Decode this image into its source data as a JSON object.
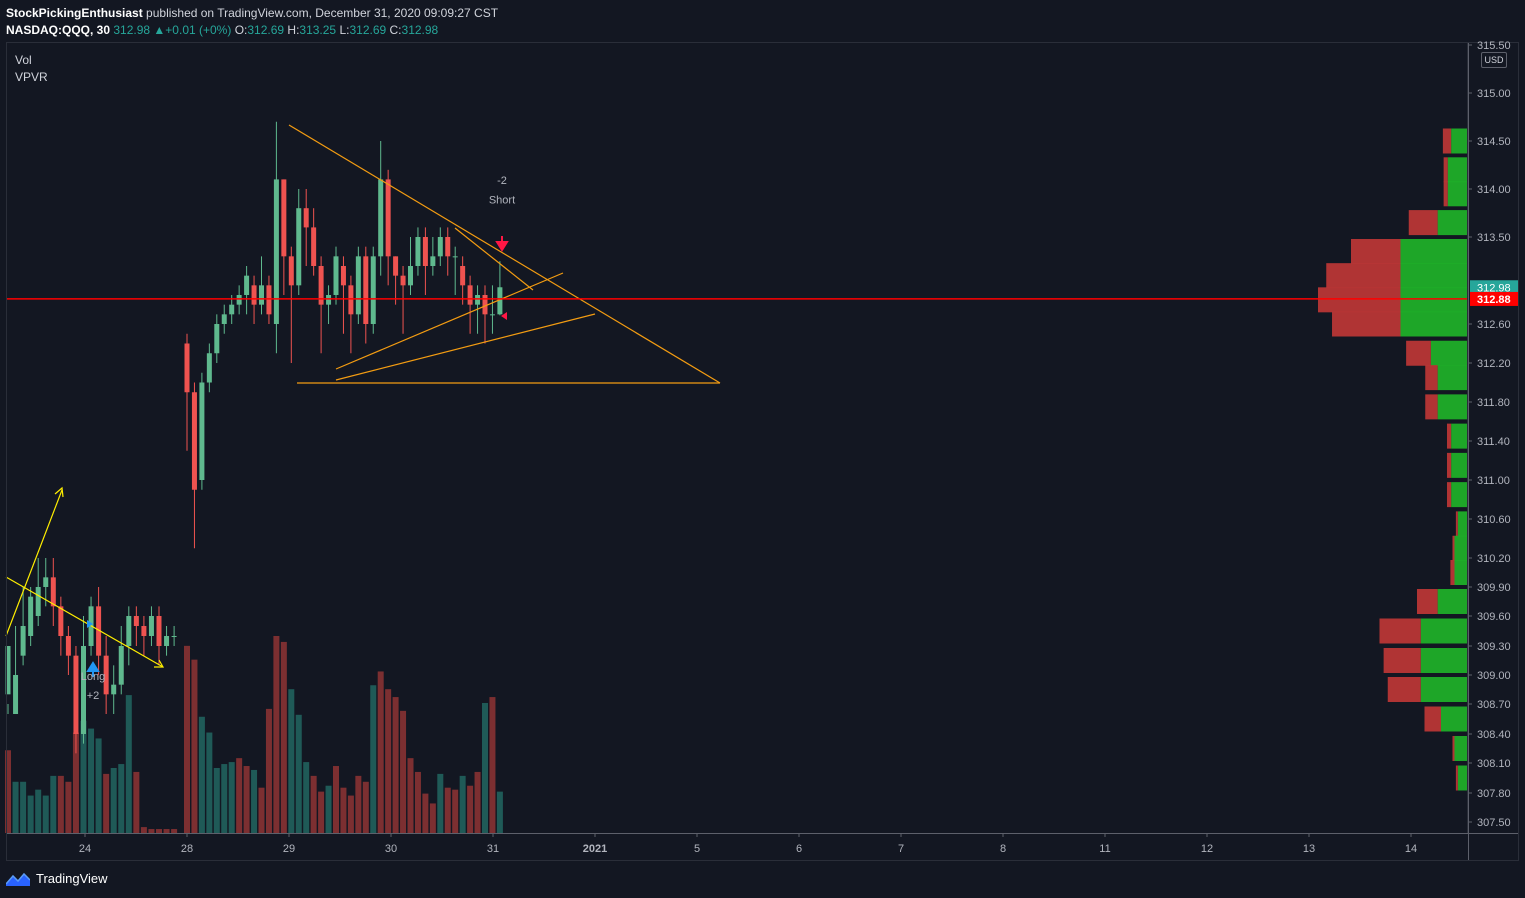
{
  "header": {
    "author": "StockPickingEnthusiast",
    "published": "published on TradingView.com, December 31, 2020 09:09:27 CST"
  },
  "symbol": {
    "name": "NASDAQ:QQQ, 30",
    "last": "312.98",
    "change_arrow": "▲",
    "change": "+0.01 (+0%)",
    "o_label": "O:",
    "o": "312.69",
    "h_label": "H:",
    "h": "313.25",
    "l_label": "L:",
    "l": "312.69",
    "c_label": "C:",
    "c": "312.98"
  },
  "indicators": {
    "vol": "Vol",
    "vpvr": "VPVR"
  },
  "currency": "USD",
  "footer": {
    "brand": "TradingView",
    "icon": "tradingview-logo-icon"
  },
  "colors": {
    "background": "#131722",
    "up": "#26a69a",
    "up_candle": "#5fb98e",
    "down": "#ef5350",
    "up_vol": "#1f5a57",
    "down_vol": "#7c2f31",
    "price_line": "#ff0000",
    "trendline": "#f39c12",
    "yellow": "#ffee00",
    "vp_up": "#1fae29",
    "vp_down": "#b83636",
    "axis_text": "#b2b5be"
  },
  "chart_data": {
    "type": "candlestick",
    "price_axis": {
      "ticks": [
        "315.50",
        "315.00",
        "314.50",
        "314.00",
        "313.50",
        "312.60",
        "312.20",
        "311.80",
        "311.40",
        "311.00",
        "310.60",
        "310.20",
        "309.90",
        "309.60",
        "309.30",
        "309.00",
        "308.70",
        "308.40",
        "308.10",
        "307.80",
        "307.50"
      ],
      "current_price_label": "312.98",
      "line_price_label": "312.88"
    },
    "time_axis": {
      "ticks": [
        "24",
        "28",
        "29",
        "30",
        "31",
        "2021",
        "5",
        "6",
        "7",
        "8",
        "11",
        "12",
        "13",
        "14"
      ]
    },
    "horizontal_line": 312.88,
    "candles": [
      [
        308.8,
        309.3,
        308.7,
        308.6
      ],
      [
        308.6,
        309.0,
        309.5,
        308.7
      ],
      [
        309.2,
        309.5,
        309.9,
        309.1
      ],
      [
        309.4,
        309.8,
        309.9,
        309.3
      ],
      [
        309.6,
        309.9,
        310.2,
        309.5
      ],
      [
        309.9,
        310.0,
        310.2,
        309.7
      ],
      [
        310.0,
        309.7,
        310.2,
        309.5
      ],
      [
        309.7,
        309.4,
        309.8,
        309.2
      ],
      [
        309.4,
        309.2,
        309.5,
        309.0
      ],
      [
        309.2,
        308.4,
        309.3,
        308.2
      ],
      [
        308.4,
        309.3,
        309.6,
        308.3
      ],
      [
        309.3,
        309.7,
        309.8,
        309.2
      ],
      [
        309.7,
        309.2,
        309.9,
        309.0
      ],
      [
        309.2,
        308.8,
        309.4,
        308.6
      ],
      [
        308.8,
        308.9,
        309.1,
        308.6
      ],
      [
        308.9,
        309.3,
        309.5,
        308.8
      ],
      [
        309.3,
        309.6,
        309.7,
        309.1
      ],
      [
        309.6,
        309.5,
        309.7,
        309.3
      ],
      [
        309.5,
        309.4,
        309.6,
        309.2
      ],
      [
        309.4,
        309.6,
        309.7,
        309.3
      ],
      [
        309.6,
        309.3,
        309.7,
        309.1
      ],
      [
        309.3,
        309.4,
        309.5,
        309.2
      ],
      [
        309.4,
        309.4,
        309.5,
        309.3
      ],
      [
        312.4,
        311.9,
        312.5,
        311.3
      ],
      [
        311.9,
        310.9,
        312.0,
        310.3
      ],
      [
        311.0,
        312.0,
        312.1,
        310.9
      ],
      [
        312.0,
        312.3,
        312.4,
        311.9
      ],
      [
        312.3,
        312.6,
        312.7,
        312.2
      ],
      [
        312.6,
        312.7,
        312.8,
        312.5
      ],
      [
        312.7,
        312.8,
        312.9,
        312.6
      ],
      [
        312.8,
        312.9,
        313.0,
        312.7
      ],
      [
        312.9,
        313.1,
        313.2,
        312.7
      ],
      [
        313.0,
        312.8,
        313.1,
        312.6
      ],
      [
        312.8,
        313.0,
        313.3,
        312.7
      ],
      [
        313.0,
        312.7,
        313.1,
        312.6
      ],
      [
        312.6,
        314.1,
        314.7,
        312.3
      ],
      [
        314.1,
        313.3,
        314.1,
        312.9
      ],
      [
        313.3,
        313.0,
        313.4,
        312.2
      ],
      [
        313.0,
        313.8,
        314.0,
        312.9
      ],
      [
        313.8,
        313.6,
        314.0,
        313.2
      ],
      [
        313.6,
        313.2,
        313.8,
        313.1
      ],
      [
        313.2,
        312.8,
        313.3,
        312.3
      ],
      [
        312.8,
        312.9,
        313.0,
        312.6
      ],
      [
        312.9,
        313.3,
        313.4,
        312.8
      ],
      [
        313.2,
        313.0,
        313.3,
        312.5
      ],
      [
        313.0,
        312.7,
        313.1,
        312.3
      ],
      [
        312.7,
        313.3,
        313.4,
        312.6
      ],
      [
        313.3,
        312.6,
        313.4,
        312.4
      ],
      [
        312.6,
        313.3,
        313.4,
        312.5
      ],
      [
        313.3,
        314.1,
        314.5,
        313.1
      ],
      [
        314.1,
        313.3,
        314.2,
        313.0
      ],
      [
        313.3,
        313.1,
        313.3,
        312.8
      ],
      [
        313.1,
        313.0,
        313.2,
        312.5
      ],
      [
        313.0,
        313.2,
        313.5,
        312.9
      ],
      [
        313.2,
        313.5,
        313.6,
        313.1
      ],
      [
        313.5,
        313.2,
        313.6,
        312.9
      ],
      [
        313.2,
        313.3,
        313.5,
        313.1
      ],
      [
        313.3,
        313.5,
        313.6,
        313.2
      ],
      [
        313.5,
        313.3,
        313.6,
        313.1
      ],
      [
        313.3,
        313.3,
        313.4,
        312.9
      ],
      [
        313.2,
        313.0,
        313.3,
        312.8
      ],
      [
        313.0,
        312.8,
        313.1,
        312.5
      ],
      [
        312.8,
        312.9,
        313.0,
        312.5
      ],
      [
        312.9,
        312.7,
        313.0,
        312.4
      ],
      [
        312.7,
        312.7,
        313.0,
        312.5
      ],
      [
        312.7,
        312.98,
        313.25,
        312.69
      ]
    ],
    "volume": [
      [
        false,
        0.42
      ],
      [
        true,
        0.26
      ],
      [
        true,
        0.26
      ],
      [
        true,
        0.19
      ],
      [
        true,
        0.22
      ],
      [
        true,
        0.19
      ],
      [
        true,
        0.29
      ],
      [
        false,
        0.29
      ],
      [
        false,
        0.26
      ],
      [
        false,
        0.51
      ],
      [
        true,
        0.57
      ],
      [
        true,
        0.53
      ],
      [
        true,
        0.48
      ],
      [
        false,
        0.3
      ],
      [
        true,
        0.33
      ],
      [
        true,
        0.35
      ],
      [
        true,
        0.7
      ],
      [
        false,
        0.31
      ],
      [
        false,
        0.03
      ],
      [
        false,
        0.02
      ],
      [
        false,
        0.02
      ],
      [
        false,
        0.02
      ],
      [
        false,
        0.02
      ],
      [
        false,
        0.95
      ],
      [
        false,
        0.88
      ],
      [
        true,
        0.59
      ],
      [
        true,
        0.51
      ],
      [
        true,
        0.33
      ],
      [
        true,
        0.35
      ],
      [
        true,
        0.36
      ],
      [
        false,
        0.38
      ],
      [
        false,
        0.34
      ],
      [
        true,
        0.32
      ],
      [
        false,
        0.23
      ],
      [
        false,
        0.63
      ],
      [
        false,
        1.0
      ],
      [
        false,
        0.97
      ],
      [
        true,
        0.73
      ],
      [
        true,
        0.6
      ],
      [
        true,
        0.36
      ],
      [
        false,
        0.29
      ],
      [
        false,
        0.21
      ],
      [
        true,
        0.24
      ],
      [
        false,
        0.34
      ],
      [
        false,
        0.23
      ],
      [
        false,
        0.19
      ],
      [
        false,
        0.29
      ],
      [
        false,
        0.26
      ],
      [
        true,
        0.75
      ],
      [
        false,
        0.82
      ],
      [
        false,
        0.73
      ],
      [
        false,
        0.69
      ],
      [
        false,
        0.62
      ],
      [
        false,
        0.38
      ],
      [
        false,
        0.31
      ],
      [
        false,
        0.2
      ],
      [
        false,
        0.15
      ],
      [
        true,
        0.3
      ],
      [
        false,
        0.23
      ],
      [
        false,
        0.22
      ],
      [
        true,
        0.29
      ],
      [
        false,
        0.24
      ],
      [
        false,
        0.31
      ],
      [
        true,
        0.66
      ],
      [
        false,
        0.69
      ],
      [
        true,
        0.21
      ]
    ],
    "volume_profile": [
      [
        314.5,
        0.0,
        0.25,
        0.1
      ],
      [
        314.2,
        0.0,
        0.3,
        0.05
      ],
      [
        313.95,
        0.0,
        0.3,
        0.05
      ],
      [
        313.65,
        0.0,
        0.45,
        0.35
      ],
      [
        313.35,
        0.0,
        1.0,
        0.6
      ],
      [
        313.1,
        0.0,
        1.0,
        0.9
      ],
      [
        312.85,
        0.0,
        1.0,
        1.0
      ],
      [
        312.6,
        0.0,
        1.0,
        0.83
      ],
      [
        312.3,
        0.0,
        0.55,
        0.3
      ],
      [
        312.05,
        0.0,
        0.45,
        0.15
      ],
      [
        311.75,
        0.0,
        0.45,
        0.15
      ],
      [
        311.45,
        0.0,
        0.25,
        0.05
      ],
      [
        311.15,
        0.0,
        0.25,
        0.05
      ],
      [
        310.85,
        0.0,
        0.25,
        0.05
      ],
      [
        310.55,
        0.0,
        0.15,
        0.02
      ],
      [
        310.3,
        0.0,
        0.2,
        0.02
      ],
      [
        310.05,
        0.0,
        0.2,
        0.05
      ],
      [
        309.75,
        0.0,
        0.45,
        0.25
      ],
      [
        309.45,
        0.0,
        0.7,
        0.5
      ],
      [
        309.15,
        0.0,
        0.7,
        0.45
      ],
      [
        308.85,
        0.0,
        0.7,
        0.4
      ],
      [
        308.55,
        0.0,
        0.4,
        0.2
      ],
      [
        308.25,
        0.0,
        0.2,
        0.02
      ],
      [
        307.95,
        0.0,
        0.15,
        0.02
      ]
    ],
    "annotations": [
      {
        "text": "-2",
        "price": 314.05,
        "bar": 63.5,
        "color": "#b2b5be"
      },
      {
        "text": "Short",
        "price": 313.85,
        "bar": 63.5,
        "color": "#b2b5be"
      },
      {
        "text": "Long",
        "price": 308.95,
        "bar": 11,
        "color": "#b2b5be"
      },
      {
        "text": "+2",
        "price": 308.75,
        "bar": 11,
        "color": "#b2b5be"
      }
    ]
  }
}
